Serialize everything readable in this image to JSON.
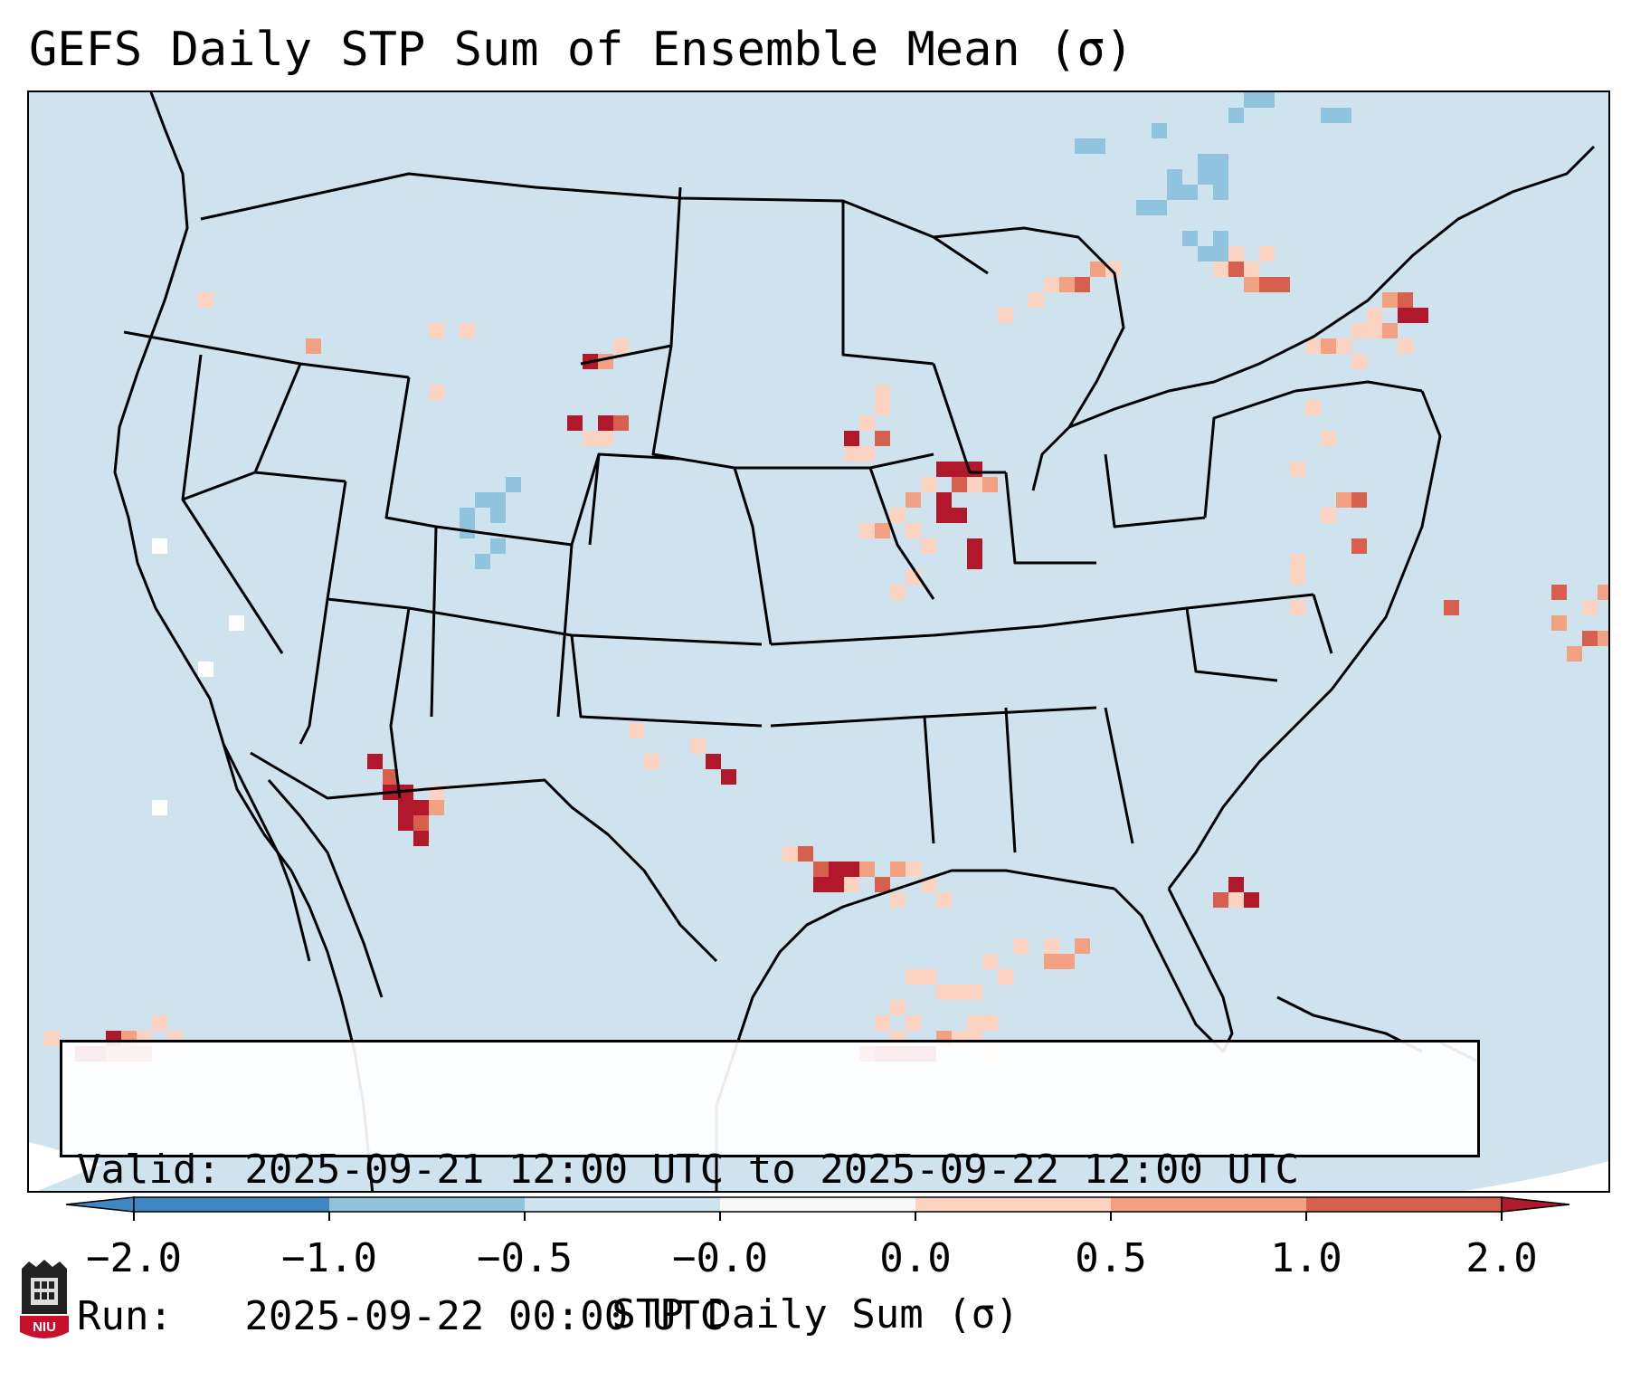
{
  "title": "GEFS Daily STP Sum of Ensemble Mean (σ)",
  "valid_line": "Valid: 2025-09-21 12:00 UTC to 2025-09-22 12:00 UTC",
  "run_line": "Run:   2025-09-22 00:00 UTC",
  "colorbar": {
    "label": "STP Daily Sum (σ)",
    "ticks": [
      "−2.0",
      "−1.0",
      "−0.5",
      "−0.0",
      "0.0",
      "0.5",
      "1.0",
      "2.0"
    ],
    "colors": [
      "#3f87c0",
      "#90c3de",
      "#cfe3ef",
      "#f8f8f8",
      "#fbd3c0",
      "#f2a283",
      "#d6604d",
      "#b2182b"
    ]
  },
  "logo_text": "NIU",
  "colors": {
    "background": "#cfe3ef",
    "strong_positive": "#b2182b",
    "moderate_positive": "#d6604d",
    "weak_positive": "#f2a283",
    "faint_positive": "#fbd3c0",
    "negative": "#90c3de"
  }
}
